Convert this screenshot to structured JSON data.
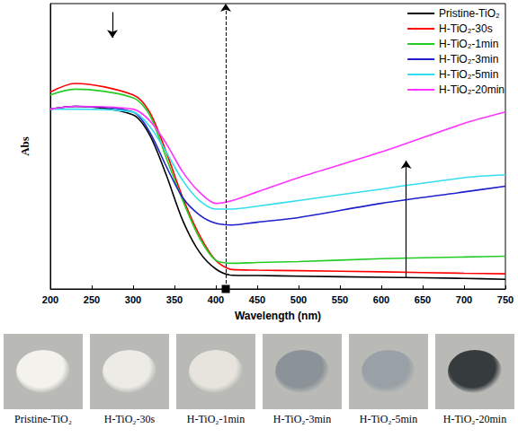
{
  "chart_data": {
    "type": "line",
    "x_label": "Wavelength (nm)",
    "y_label": "Abs",
    "x": [
      200,
      230,
      300,
      320,
      340,
      360,
      380,
      400,
      420,
      450,
      500,
      600,
      700,
      750
    ],
    "series": [
      {
        "name": "Pristine-TiO₂",
        "color": "#000000",
        "values": [
          0.63,
          0.64,
          0.61,
          0.54,
          0.4,
          0.24,
          0.13,
          0.07,
          0.048,
          0.047,
          0.045,
          0.041,
          0.037,
          0.034
        ]
      },
      {
        "name": "H-TiO₂-30s",
        "color": "#ff0000",
        "values": [
          0.69,
          0.72,
          0.68,
          0.62,
          0.48,
          0.32,
          0.19,
          0.1,
          0.068,
          0.066,
          0.064,
          0.06,
          0.055,
          0.053
        ]
      },
      {
        "name": "H-TiO₂-1min",
        "color": "#22cc22",
        "values": [
          0.68,
          0.7,
          0.67,
          0.61,
          0.46,
          0.31,
          0.18,
          0.1,
          0.09,
          0.093,
          0.096,
          0.106,
          0.112,
          0.115
        ]
      },
      {
        "name": "H-TiO₂-3min",
        "color": "#2020cc",
        "values": [
          0.63,
          0.64,
          0.62,
          0.55,
          0.43,
          0.32,
          0.26,
          0.23,
          0.224,
          0.234,
          0.25,
          0.3,
          0.34,
          0.36
        ]
      },
      {
        "name": "H-TiO₂-5min",
        "color": "#33ddee",
        "values": [
          0.63,
          0.63,
          0.62,
          0.57,
          0.48,
          0.38,
          0.31,
          0.28,
          0.28,
          0.29,
          0.31,
          0.35,
          0.39,
          0.4
        ]
      },
      {
        "name": "H-TiO₂-20min",
        "color": "#ff33ff",
        "values": [
          0.63,
          0.64,
          0.63,
          0.59,
          0.51,
          0.41,
          0.34,
          0.3,
          0.31,
          0.34,
          0.39,
          0.48,
          0.58,
          0.62
        ]
      }
    ],
    "xlim": [
      200,
      750
    ],
    "xticks": [
      200,
      250,
      300,
      350,
      400,
      450,
      500,
      550,
      600,
      650,
      700,
      750
    ],
    "ylim": [
      0,
      1
    ],
    "tick_labels": "x",
    "grid": false,
    "legend": "top-right",
    "vline": 412,
    "arrows": [
      {
        "x": 275,
        "y_from": 0.97,
        "y_to": 0.88
      },
      {
        "x": 630,
        "y_from": 0.04,
        "y_to": 0.45
      }
    ],
    "photos": [
      {
        "label": "Pristine-TiO₂",
        "color": "#f4f2ec"
      },
      {
        "label": "H-TiO₂-30s",
        "color": "#ecebe6"
      },
      {
        "label": "H-TiO₂-1min",
        "color": "#e6e4dc"
      },
      {
        "label": "H-TiO₂-3min",
        "color": "#8b9298"
      },
      {
        "label": "H-TiO₂-5min",
        "color": "#9aa1a6"
      },
      {
        "label": "H-TiO₂-20min",
        "color": "#363b3e"
      }
    ]
  }
}
